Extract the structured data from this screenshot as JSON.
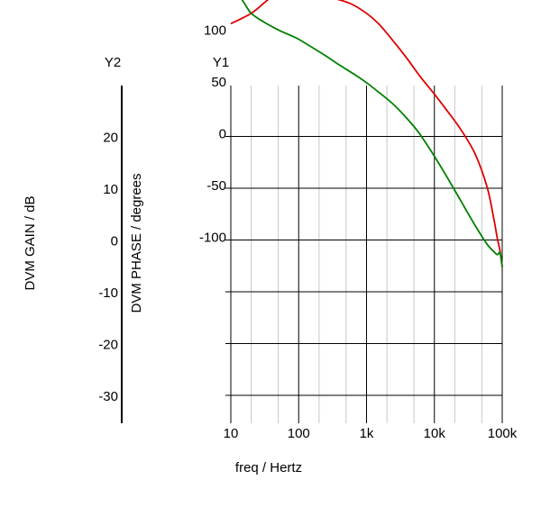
{
  "chart_data": {
    "type": "line",
    "x_axis": {
      "label": "freq / Hertz",
      "scale": "log",
      "range": [
        10,
        100000
      ],
      "tick_labels": [
        "10",
        "100",
        "1k",
        "10k",
        "100k"
      ],
      "tick_values": [
        10,
        100,
        1000,
        10000,
        100000
      ]
    },
    "y_axes": {
      "y1": {
        "header": "Y1",
        "label": "DVM PHASE / degrees",
        "range": [
          -120,
          150
        ],
        "tick_labels": [
          "100",
          "50",
          "0",
          "-50",
          "-100"
        ],
        "tick_values": [
          100,
          50,
          0,
          -50,
          -100
        ]
      },
      "y2": {
        "header": "Y2",
        "label": "DVM GAIN / dB",
        "range": [
          -35,
          30
        ],
        "tick_labels": [
          "20",
          "10",
          "0",
          "-10",
          "-20",
          "-30"
        ],
        "tick_values": [
          20,
          10,
          0,
          -10,
          -20,
          -30
        ]
      }
    },
    "grid": true,
    "series": [
      {
        "color": "#dd0000",
        "axis": "y1",
        "points": [
          [
            10,
            108
          ],
          [
            20,
            118
          ],
          [
            35,
            131
          ],
          [
            55,
            140
          ],
          [
            80,
            144
          ],
          [
            100,
            143
          ],
          [
            150,
            139
          ],
          [
            250,
            134
          ],
          [
            400,
            131
          ],
          [
            600,
            127
          ],
          [
            1000,
            118
          ],
          [
            1500,
            108
          ],
          [
            2500,
            91
          ],
          [
            4000,
            74
          ],
          [
            6000,
            58
          ],
          [
            10000,
            40
          ],
          [
            15000,
            25
          ],
          [
            25000,
            5
          ],
          [
            40000,
            -18
          ],
          [
            60000,
            -50
          ],
          [
            75000,
            -80
          ],
          [
            85000,
            -100
          ],
          [
            92000,
            -110
          ],
          [
            100000,
            -127
          ]
        ]
      },
      {
        "color": "#008000",
        "axis": "y1",
        "points": [
          [
            10,
            146
          ],
          [
            15,
            130
          ],
          [
            20,
            118
          ],
          [
            30,
            110
          ],
          [
            50,
            102
          ],
          [
            80,
            96
          ],
          [
            100,
            93
          ],
          [
            150,
            86
          ],
          [
            250,
            77
          ],
          [
            400,
            68
          ],
          [
            700,
            58
          ],
          [
            1000,
            51
          ],
          [
            1500,
            42
          ],
          [
            2500,
            30
          ],
          [
            4000,
            16
          ],
          [
            6000,
            2
          ],
          [
            10000,
            -20
          ],
          [
            15000,
            -39
          ],
          [
            25000,
            -64
          ],
          [
            40000,
            -87
          ],
          [
            60000,
            -105
          ],
          [
            75000,
            -112
          ],
          [
            85000,
            -115
          ],
          [
            92000,
            -113
          ],
          [
            97000,
            -120
          ],
          [
            100000,
            -127
          ]
        ]
      }
    ]
  }
}
